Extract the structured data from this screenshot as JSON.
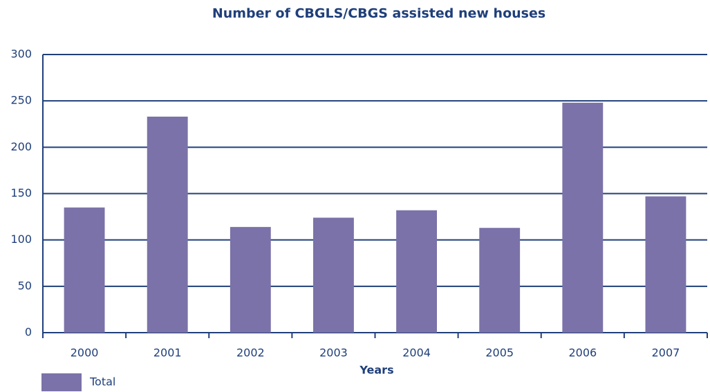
{
  "chart_data": {
    "type": "bar",
    "title": "Number of CBGLS/CBGS assisted new houses",
    "x_label": "Years",
    "categories": [
      "2000",
      "2001",
      "2002",
      "2003",
      "2004",
      "2005",
      "2006",
      "2007"
    ],
    "series": [
      {
        "name": "Total",
        "color": "#7a72a8",
        "values": [
          135,
          233,
          114,
          124,
          132,
          113,
          248,
          147
        ]
      }
    ],
    "ylim": [
      0,
      300
    ],
    "yticks": [
      0,
      50,
      100,
      150,
      200,
      250,
      300
    ],
    "grid": true,
    "legend": "bottom-left"
  }
}
